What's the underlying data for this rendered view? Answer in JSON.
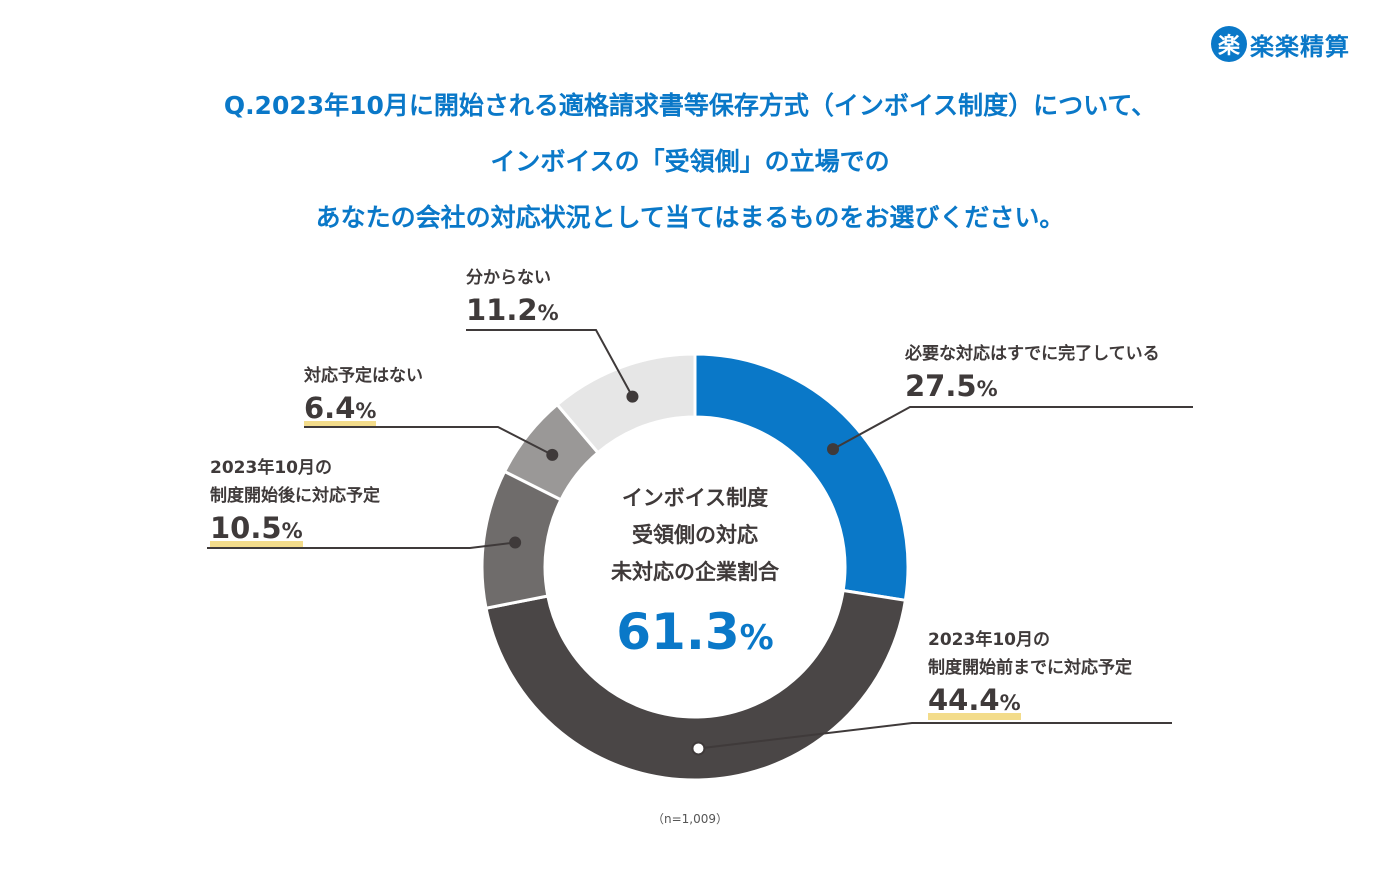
{
  "brand": {
    "mark": "楽",
    "name": "楽楽精算"
  },
  "question": [
    "Q.2023年10月に開始される適格請求書等保存方式（インボイス制度）について、",
    "インボイスの「受領側」の立場での",
    "あなたの会社の対応状況として当てはまるものをお選びください。"
  ],
  "center": {
    "lines": [
      "インボイス制度",
      "受領側の対応",
      "未対応の企業割合"
    ],
    "value": "61.3",
    "unit": "%"
  },
  "sample_size": "（n=1,009）",
  "labels": {
    "s0": {
      "line1": "必要な対応はすでに完了している",
      "line2": "",
      "value": "27.5",
      "unit": "%"
    },
    "s1": {
      "line1": "2023年10月の",
      "line2": "制度開始前までに対応予定",
      "value": "44.4",
      "unit": "%"
    },
    "s2": {
      "line1": "2023年10月の",
      "line2": "制度開始後に対応予定",
      "value": "10.5",
      "unit": "%"
    },
    "s3": {
      "line1": "対応予定はない",
      "line2": "",
      "value": "6.4",
      "unit": "%"
    },
    "s4": {
      "line1": "分からない",
      "line2": "",
      "value": "11.2",
      "unit": "%"
    }
  },
  "chart_data": {
    "type": "pie",
    "title": "",
    "categories": [
      "必要な対応はすでに完了している",
      "2023年10月の制度開始前までに対応予定",
      "2023年10月の制度開始後に対応予定",
      "対応予定はない",
      "分からない"
    ],
    "values": [
      27.5,
      44.4,
      10.5,
      6.4,
      11.2
    ],
    "colors": [
      "#0a78c8",
      "#4a4646",
      "#6f6c6b",
      "#9a9897",
      "#e6e6e6"
    ],
    "highlighted": [
      false,
      true,
      true,
      true,
      false
    ],
    "donut": true,
    "legend": "none"
  }
}
